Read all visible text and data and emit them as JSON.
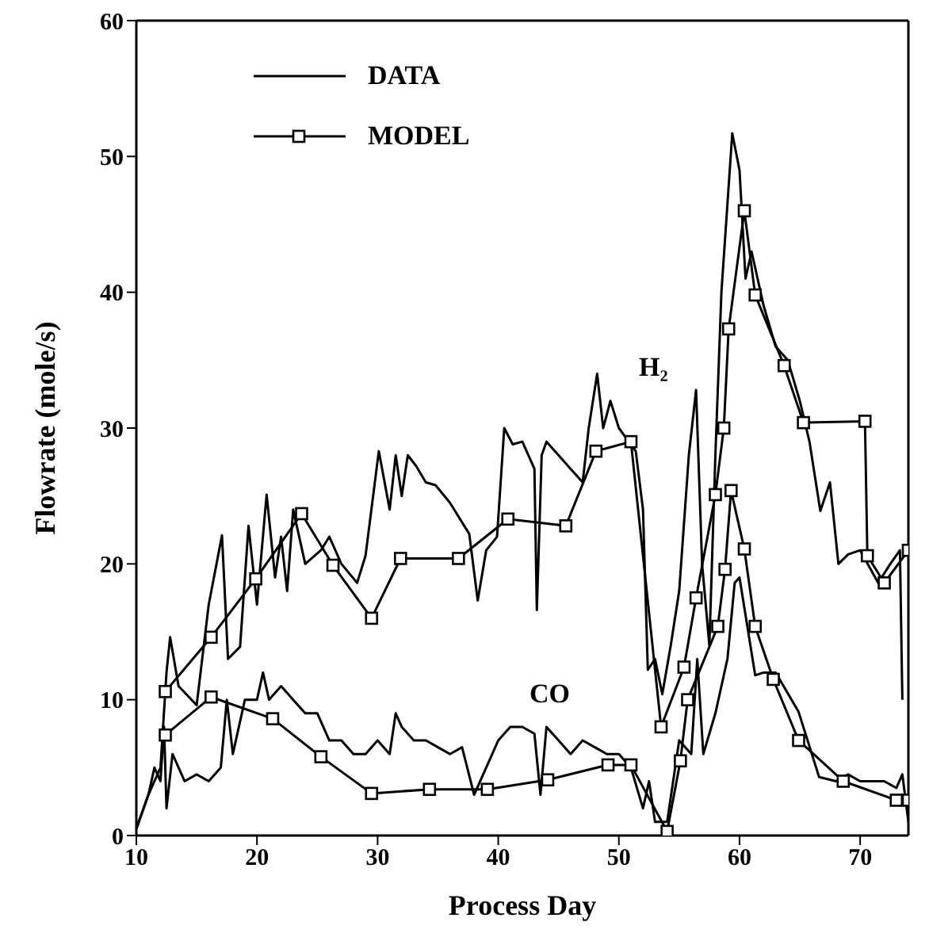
{
  "chart_data": {
    "type": "line",
    "xlabel": "Process Day",
    "ylabel": "Flowrate (mole/s)",
    "xlim": [
      10,
      74
    ],
    "xticks": [
      10,
      20,
      30,
      40,
      50,
      60,
      70
    ],
    "ylim": [
      0,
      60
    ],
    "yticks": [
      0,
      10,
      20,
      30,
      40,
      50,
      60
    ],
    "legend": "top left",
    "line_style": "solid",
    "annotations": [
      "H₂",
      "CO"
    ],
    "series": [
      {
        "name": "DATA",
        "color": "#000000",
        "marker": "none",
        "x": [
          10,
          11,
          12,
          12.5,
          12.8,
          13.5,
          15,
          16,
          17.1,
          17.6,
          18.6,
          19.3,
          20,
          20.8,
          21.5,
          22,
          22.5,
          23,
          24,
          25.3,
          26,
          27,
          28.3,
          29,
          30.1,
          31,
          31.5,
          32,
          32.5,
          33.2,
          34,
          34.8,
          36,
          37.6,
          38.3,
          39,
          39.9,
          40.5,
          41.2,
          42,
          43,
          43.2,
          43.6,
          44,
          45,
          46,
          47,
          47.5,
          48.2,
          48.7,
          49.3,
          50,
          51.4,
          52,
          52.4,
          53,
          53.6,
          54.3,
          55,
          55.8,
          56.4,
          56.9,
          57.5,
          58,
          58.5,
          59.4,
          60,
          60.5,
          61,
          62,
          63,
          64,
          65,
          65.8,
          66.7,
          67.5,
          68.2,
          69,
          70,
          71.5,
          72.5,
          73.3,
          73.5
        ],
        "values": [
          0.5,
          3,
          5,
          12,
          14.6,
          11,
          9.6,
          17,
          22.1,
          13,
          13.9,
          22.8,
          17,
          25.1,
          19,
          22,
          18,
          24,
          20,
          21,
          22,
          20,
          18.6,
          20.6,
          28.3,
          24,
          28,
          25,
          28,
          27.2,
          26,
          25.8,
          24.5,
          22.2,
          17.3,
          21,
          22,
          30,
          28.8,
          29,
          27,
          16.6,
          28,
          29,
          28,
          27,
          26,
          30,
          34,
          30,
          32,
          30,
          28.3,
          24,
          12.2,
          13,
          10.4,
          14,
          18,
          28,
          32.8,
          20,
          14,
          28,
          40,
          51.7,
          49,
          41,
          43,
          39,
          36,
          35,
          32,
          29,
          23.9,
          26,
          20,
          20.7,
          21,
          18.6,
          20,
          21,
          10
        ]
      },
      {
        "name": "MODEL",
        "color": "#000000",
        "marker": "square",
        "x": [
          12.4,
          16.2,
          19.9,
          23.7,
          26.3,
          29.5,
          31.9,
          36.7,
          40.8,
          45.6,
          48.1,
          51,
          53.5,
          55.4,
          56.4,
          58,
          58.7,
          59.1,
          60.4,
          61.3,
          63.7,
          65.3,
          70.4,
          70.6,
          72,
          74
        ],
        "values": [
          10.6,
          14.6,
          18.9,
          23.7,
          19.9,
          16,
          20.4,
          20.4,
          23.3,
          22.8,
          28.3,
          29,
          8,
          12.4,
          17.5,
          25.1,
          30,
          37.3,
          46,
          39.8,
          34.6,
          30.4,
          30.5,
          20.6,
          18.6,
          21
        ]
      },
      {
        "color": "#000000",
        "marker": "none",
        "x": [
          10,
          11,
          11.5,
          12,
          12.3,
          12.5,
          13,
          14,
          15,
          16,
          17,
          17.5,
          18,
          19,
          20,
          20.5,
          21,
          22,
          23,
          24,
          25,
          26,
          27,
          28,
          29,
          30,
          31,
          31.5,
          32,
          33,
          34,
          35,
          36,
          37,
          38,
          39,
          40,
          41,
          42,
          43,
          43.5,
          44,
          45,
          46,
          47,
          48,
          49,
          50,
          51,
          52,
          52.5,
          53,
          54,
          55,
          56,
          56.5,
          57,
          58,
          59,
          59.6,
          60,
          61.3,
          62,
          63,
          64.9,
          66.6,
          68,
          69,
          70,
          71,
          72,
          73,
          73.5,
          74
        ],
        "values": [
          0.5,
          3,
          5,
          4,
          8,
          2,
          6,
          4,
          4.5,
          4,
          5,
          10,
          6,
          10,
          10,
          12,
          10,
          11,
          10,
          9,
          9,
          7,
          7,
          6,
          6,
          7,
          6,
          9,
          8,
          7,
          7,
          6.5,
          6,
          6.5,
          3,
          5,
          7,
          8,
          8,
          7.5,
          3,
          8,
          7,
          6,
          7,
          6.5,
          6,
          6,
          5,
          2,
          4,
          1,
          1,
          7,
          6,
          13,
          6,
          9,
          13,
          18.6,
          19,
          11.8,
          12,
          12,
          9.1,
          4.3,
          4,
          4.5,
          4,
          4,
          4,
          3.5,
          4.5,
          1
        ]
      },
      {
        "color": "#000000",
        "marker": "square",
        "x": [
          12.4,
          16.2,
          21.3,
          25.3,
          29.5,
          34.3,
          39.1,
          44.1,
          49.1,
          51,
          54,
          55.1,
          55.7,
          58.2,
          58.8,
          59.3,
          60.4,
          61.3,
          62.8,
          64.9,
          68.6,
          73,
          74
        ],
        "values": [
          7.4,
          10.2,
          8.6,
          5.8,
          3.1,
          3.4,
          3.4,
          4.1,
          5.2,
          5.2,
          0.3,
          5.5,
          10,
          15.4,
          19.6,
          25.4,
          21.1,
          15.4,
          11.5,
          7,
          4,
          2.6,
          2.6
        ]
      }
    ]
  }
}
